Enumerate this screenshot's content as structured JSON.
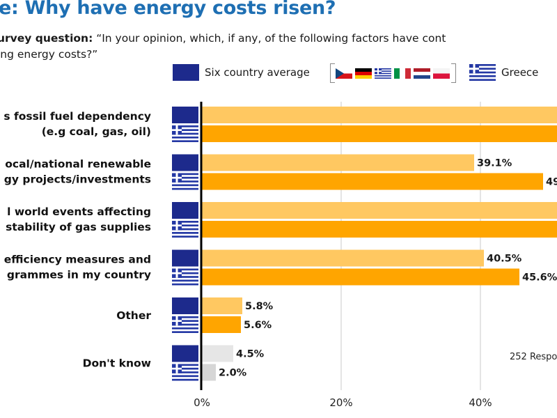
{
  "title": "e: Why have energy costs risen?",
  "subtitle": {
    "question_label": "urvey question:",
    "question_line1": " “In your opinion, which, if any, of the following factors have cont",
    "question_line2": "ing energy costs?”"
  },
  "legend": {
    "series_a": "Six country average",
    "series_b": "Greece",
    "flags": [
      "czech-flag",
      "german-flag",
      "greek-flag",
      "italian-flag",
      "dutch-flag",
      "polish-flag"
    ]
  },
  "colors": {
    "six_country": "#ffc861",
    "greece": "#ffa500",
    "dontknow_a": "#e6e6e6",
    "dontknow_b": "#d6d6d6",
    "eu_navy": "#1d2a8c",
    "greek_blue": "#2438a4",
    "title_blue": "#1e6fb3"
  },
  "chart_data": {
    "type": "bar",
    "orientation": "horizontal",
    "categories": [
      [
        "s fossil fuel dependency",
        "(e.g coal, gas, oil)"
      ],
      [
        "ocal/national renewable",
        "gy projects/investments"
      ],
      [
        "l world events affecting",
        "stability of gas supplies"
      ],
      [
        "efficiency measures and",
        "grammes in my country"
      ],
      [
        "Other"
      ],
      [
        "Don't know"
      ]
    ],
    "series": [
      {
        "name": "Six country average",
        "values": [
          null,
          39.1,
          null,
          40.5,
          5.8,
          4.5
        ],
        "labels": [
          "",
          "39.1%",
          "",
          "40.5%",
          "5.8%",
          "4.5%"
        ]
      },
      {
        "name": "Greece",
        "values": [
          null,
          49,
          null,
          45.6,
          5.6,
          2.0
        ],
        "labels": [
          "",
          "49",
          "",
          "45.6%",
          "5.6%",
          "2.0%"
        ]
      }
    ],
    "xlim": [
      0,
      50
    ],
    "ticks": [
      "0%",
      "20%",
      "40%"
    ],
    "tick_values": [
      0,
      20,
      40
    ],
    "note": "252 Respo"
  }
}
